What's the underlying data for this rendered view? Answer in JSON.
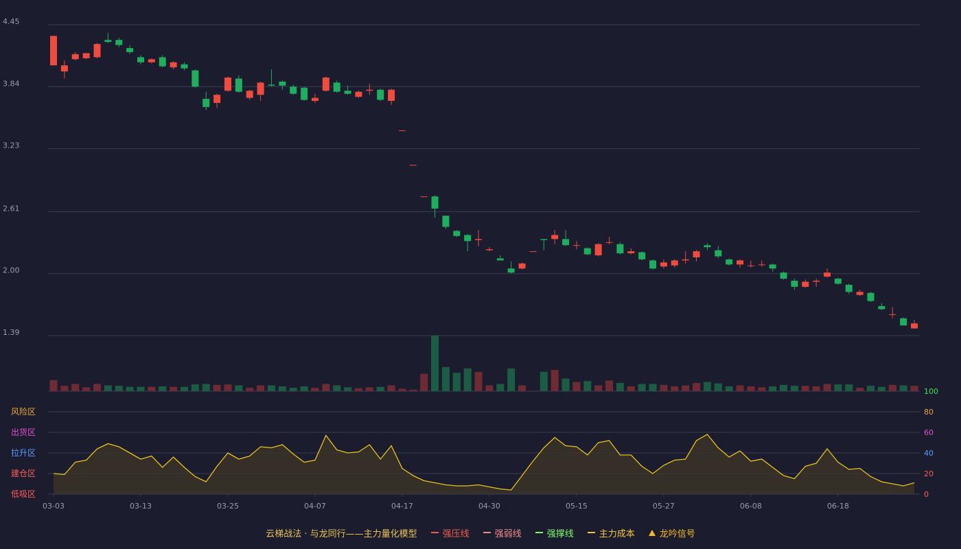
{
  "chart_data": [
    {
      "type": "candlestick",
      "name": "price",
      "y_ticks": [
        "4.45",
        "3.84",
        "3.23",
        "2.61",
        "2.00",
        "1.39"
      ],
      "ylim": [
        1.39,
        4.45
      ],
      "x_ticks": [
        {
          "index": 0,
          "label": "03-03"
        },
        {
          "index": 8,
          "label": "03-13"
        },
        {
          "index": 16,
          "label": "03-25"
        },
        {
          "index": 24,
          "label": "04-07"
        },
        {
          "index": 32,
          "label": "04-17"
        },
        {
          "index": 40,
          "label": "04-30"
        },
        {
          "index": 48,
          "label": "05-15"
        },
        {
          "index": 56,
          "label": "05-27"
        },
        {
          "index": 64,
          "label": "06-08"
        },
        {
          "index": 72,
          "label": "06-18"
        }
      ],
      "candles": [
        [
          4.05,
          4.34,
          4.33,
          4.05
        ],
        [
          3.99,
          4.05,
          4.1,
          3.92
        ],
        [
          4.11,
          4.16,
          4.18,
          4.1
        ],
        [
          4.12,
          4.17,
          4.17,
          4.11
        ],
        [
          4.13,
          4.26,
          4.27,
          4.12
        ],
        [
          4.3,
          4.28,
          4.37,
          4.27
        ],
        [
          4.3,
          4.25,
          4.32,
          4.23
        ],
        [
          4.22,
          4.18,
          4.25,
          4.16
        ],
        [
          4.13,
          4.08,
          4.15,
          4.06
        ],
        [
          4.08,
          4.11,
          4.12,
          4.07
        ],
        [
          4.13,
          4.04,
          4.15,
          4.03
        ],
        [
          4.03,
          4.08,
          4.09,
          4.01
        ],
        [
          4.06,
          4.02,
          4.08,
          4.0
        ],
        [
          4.0,
          3.84,
          4.01,
          3.83
        ],
        [
          3.72,
          3.64,
          3.79,
          3.61
        ],
        [
          3.68,
          3.76,
          3.77,
          3.63
        ],
        [
          3.8,
          3.93,
          3.94,
          3.79
        ],
        [
          3.92,
          3.79,
          3.95,
          3.78
        ],
        [
          3.73,
          3.8,
          3.81,
          3.71
        ],
        [
          3.76,
          3.88,
          3.89,
          3.7
        ],
        [
          3.86,
          3.85,
          4.01,
          3.84
        ],
        [
          3.89,
          3.85,
          3.9,
          3.81
        ],
        [
          3.84,
          3.77,
          3.86,
          3.76
        ],
        [
          3.83,
          3.71,
          3.84,
          3.7
        ],
        [
          3.7,
          3.73,
          3.77,
          3.68
        ],
        [
          3.8,
          3.93,
          3.94,
          3.79
        ],
        [
          3.88,
          3.79,
          3.9,
          3.78
        ],
        [
          3.8,
          3.77,
          3.85,
          3.76
        ],
        [
          3.74,
          3.79,
          3.8,
          3.73
        ],
        [
          3.8,
          3.81,
          3.87,
          3.76
        ],
        [
          3.81,
          3.71,
          3.82,
          3.7
        ],
        [
          3.7,
          3.81,
          3.82,
          3.66
        ],
        [
          3.41,
          3.41,
          3.41,
          3.41
        ],
        [
          3.07,
          3.07,
          3.07,
          3.07
        ],
        [
          2.76,
          2.76,
          2.76,
          2.76
        ],
        [
          2.76,
          2.64,
          2.77,
          2.55
        ],
        [
          2.57,
          2.46,
          2.57,
          2.44
        ],
        [
          2.42,
          2.37,
          2.43,
          2.36
        ],
        [
          2.38,
          2.32,
          2.39,
          2.22
        ],
        [
          2.33,
          2.34,
          2.43,
          2.27
        ],
        [
          2.23,
          2.24,
          2.26,
          2.22
        ],
        [
          2.15,
          2.13,
          2.18,
          2.13
        ],
        [
          2.05,
          2.01,
          2.12,
          2.0
        ],
        [
          2.05,
          2.1,
          2.11,
          2.04
        ],
        [
          2.22,
          2.22,
          2.22,
          2.22
        ],
        [
          2.34,
          2.33,
          2.34,
          2.23
        ],
        [
          2.34,
          2.38,
          2.43,
          2.29
        ],
        [
          2.34,
          2.28,
          2.43,
          2.27
        ],
        [
          2.28,
          2.28,
          2.32,
          2.24
        ],
        [
          2.25,
          2.19,
          2.26,
          2.18
        ],
        [
          2.18,
          2.29,
          2.3,
          2.17
        ],
        [
          2.31,
          2.31,
          2.36,
          2.29
        ],
        [
          2.29,
          2.2,
          2.31,
          2.19
        ],
        [
          2.2,
          2.22,
          2.25,
          2.19
        ],
        [
          2.21,
          2.14,
          2.22,
          2.13
        ],
        [
          2.13,
          2.05,
          2.14,
          2.04
        ],
        [
          2.07,
          2.11,
          2.14,
          2.05
        ],
        [
          2.08,
          2.13,
          2.14,
          2.06
        ],
        [
          2.13,
          2.14,
          2.22,
          2.1
        ],
        [
          2.16,
          2.22,
          2.23,
          2.12
        ],
        [
          2.28,
          2.26,
          2.3,
          2.23
        ],
        [
          2.23,
          2.17,
          2.27,
          2.15
        ],
        [
          2.14,
          2.09,
          2.15,
          2.08
        ],
        [
          2.09,
          2.13,
          2.14,
          2.06
        ],
        [
          2.08,
          2.08,
          2.13,
          2.06
        ],
        [
          2.09,
          2.09,
          2.13,
          2.07
        ],
        [
          2.09,
          2.05,
          2.1,
          2.02
        ],
        [
          2.01,
          1.95,
          2.02,
          1.94
        ],
        [
          1.93,
          1.87,
          1.95,
          1.84
        ],
        [
          1.87,
          1.92,
          1.94,
          1.86
        ],
        [
          1.92,
          1.93,
          1.95,
          1.87
        ],
        [
          1.97,
          2.01,
          2.05,
          1.96
        ],
        [
          1.95,
          1.9,
          1.96,
          1.89
        ],
        [
          1.89,
          1.82,
          1.9,
          1.8
        ],
        [
          1.79,
          1.82,
          1.84,
          1.78
        ],
        [
          1.81,
          1.73,
          1.82,
          1.72
        ],
        [
          1.68,
          1.65,
          1.71,
          1.64
        ],
        [
          1.6,
          1.6,
          1.67,
          1.56
        ],
        [
          1.56,
          1.49,
          1.57,
          1.49
        ],
        [
          1.46,
          1.51,
          1.54,
          1.46
        ]
      ]
    },
    {
      "type": "bar",
      "name": "volume",
      "values": [
        23,
        11,
        15,
        8,
        15,
        12,
        11,
        9,
        9,
        9,
        10,
        9,
        9,
        14,
        15,
        13,
        14,
        12,
        7,
        12,
        12,
        10,
        7,
        10,
        7,
        15,
        12,
        8,
        6,
        8,
        9,
        12,
        5,
        3,
        36,
        115,
        50,
        38,
        47,
        40,
        12,
        15,
        47,
        12,
        1,
        40,
        44,
        26,
        19,
        21,
        12,
        22,
        17,
        10,
        15,
        15,
        13,
        10,
        12,
        17,
        19,
        16,
        10,
        12,
        10,
        8,
        10,
        13,
        11,
        11,
        10,
        15,
        14,
        14,
        7,
        11,
        9,
        13,
        12,
        11
      ]
    },
    {
      "type": "line",
      "name": "oscillator",
      "ylim": [
        0,
        100
      ],
      "y_ticks": [
        "100",
        "80",
        "60",
        "40",
        "20",
        "0"
      ],
      "zone_labels": [
        "风险区",
        "出货区",
        "拉升区",
        "建仓区",
        "低吸区"
      ],
      "values": [
        20,
        19,
        31,
        33,
        44,
        49,
        46,
        40,
        34,
        37,
        26,
        36,
        26,
        17,
        12,
        27,
        40,
        34,
        37,
        46,
        45,
        48,
        39,
        31,
        33,
        57,
        43,
        40,
        41,
        48,
        34,
        47,
        25,
        18,
        13,
        11,
        9,
        8,
        8,
        9,
        7,
        5,
        4,
        18,
        32,
        45,
        55,
        47,
        46,
        38,
        50,
        52,
        38,
        38,
        27,
        20,
        28,
        33,
        34,
        52,
        58,
        45,
        36,
        42,
        32,
        34,
        26,
        18,
        15,
        27,
        30,
        44,
        31,
        24,
        25,
        17,
        12,
        10,
        8,
        11
      ]
    }
  ],
  "legend": {
    "title": "云梯战法 · 与龙同行——主力量化模型",
    "items": [
      {
        "label": "强压线",
        "color": "#ef5f4f",
        "style": "solid"
      },
      {
        "label": "强弱线",
        "color": "#f08a8a",
        "style": "dashed"
      },
      {
        "label": "强撑线",
        "color": "#7dfc6a",
        "style": "solid"
      },
      {
        "label": "主力成本",
        "color": "#f5c542",
        "style": "dashed"
      },
      {
        "label": "龙吟信号",
        "color": "#f5b923",
        "style": "triangle"
      }
    ]
  },
  "colors": {
    "up": "#ef4b3f",
    "down": "#1fad5e",
    "volume_up": "#6e2b33",
    "volume_down": "#1d5c44",
    "oscillator_line": "#e8c21e",
    "grid": "#3a3c52",
    "axis_text": "#9a9bb0",
    "tick_100": "#3fe05a",
    "tick_80": "#e8a53a",
    "tick_60": "#e04ed0",
    "tick_40": "#5a9cff",
    "tick_20": "#ff5a5a",
    "tick_0": "#ff5a5a",
    "zone_risk": "#e8a53a",
    "zone_sell": "#e04ed0",
    "zone_pull": "#5a9cff",
    "zone_build": "#ff5a5a",
    "zone_low": "#ff5a5a"
  }
}
